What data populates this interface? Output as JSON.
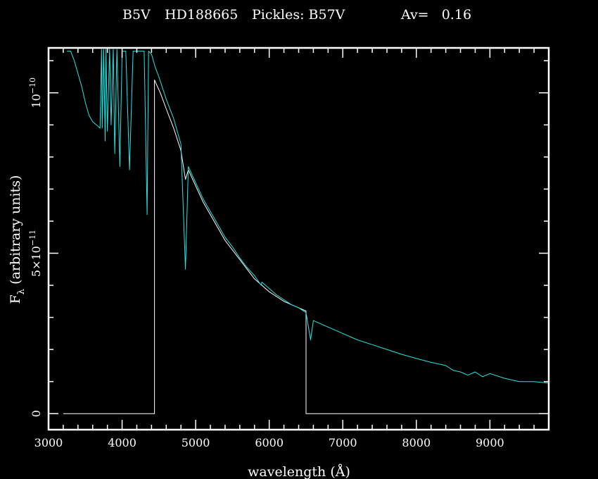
{
  "chart_data": {
    "type": "line",
    "title_parts": {
      "spectral_type": "B5V",
      "star": "HD188665",
      "pickles": "Pickles: B57V",
      "av": "Av=   0.16"
    },
    "xlabel": "wavelength (Å)",
    "ylabel_main": "F",
    "ylabel_sub": "λ",
    "ylabel_rest": " (arbitrary units)",
    "xlim": [
      3000,
      9800
    ],
    "ylim": [
      -5e-12,
      1.14e-10
    ],
    "x_ticks": [
      {
        "value": 3000,
        "label": "3000"
      },
      {
        "value": 4000,
        "label": "4000"
      },
      {
        "value": 5000,
        "label": "5000"
      },
      {
        "value": 6000,
        "label": "6000"
      },
      {
        "value": 7000,
        "label": "7000"
      },
      {
        "value": 8000,
        "label": "8000"
      },
      {
        "value": 9000,
        "label": "9000"
      }
    ],
    "y_ticks": [
      {
        "value": 0,
        "base": "0",
        "exp": ""
      },
      {
        "value": 5e-11,
        "base": "5×10",
        "exp": "−11"
      },
      {
        "value": 1e-10,
        "base": "10",
        "exp": "−10"
      }
    ],
    "grid": false,
    "series": [
      {
        "color": "#ffffff",
        "x": [
          3200,
          4440,
          4440,
          4480,
          4520,
          4600,
          4700,
          4800,
          4861,
          4900,
          5000,
          5100,
          5200,
          5300,
          5400,
          5500,
          5600,
          5700,
          5800,
          5900,
          6000,
          6100,
          6200,
          6300,
          6400,
          6500,
          6500,
          9800
        ],
        "y": [
          0,
          0,
          1.04e-10,
          1.02e-10,
          1e-10,
          9.5e-11,
          8.9e-11,
          8.2e-11,
          7.3e-11,
          7.6e-11,
          7.1e-11,
          6.6e-11,
          6.2e-11,
          5.8e-11,
          5.4e-11,
          5.1e-11,
          4.8e-11,
          4.5e-11,
          4.2e-11,
          4e-11,
          3.8e-11,
          3.65e-11,
          3.5e-11,
          3.4e-11,
          3.3e-11,
          3.2e-11,
          0,
          0
        ]
      },
      {
        "color": "#22e5e5",
        "x": [
          3250,
          3300,
          3350,
          3400,
          3450,
          3500,
          3550,
          3600,
          3650,
          3700,
          3720,
          3730,
          3750,
          3770,
          3780,
          3800,
          3830,
          3850,
          3880,
          3900,
          3930,
          3970,
          4000,
          4050,
          4101,
          4150,
          4200,
          4250,
          4300,
          4340,
          4360,
          4400,
          4450,
          4500,
          4600,
          4700,
          4800,
          4861,
          4900,
          5000,
          5100,
          5200,
          5300,
          5400,
          5500,
          5600,
          5700,
          5800,
          5890,
          5900,
          6000,
          6100,
          6200,
          6300,
          6400,
          6500,
          6563,
          6600,
          6700,
          6800,
          6900,
          7000,
          7200,
          7400,
          7600,
          7800,
          8000,
          8200,
          8400,
          8500,
          8600,
          8700,
          8800,
          8900,
          9000,
          9200,
          9400,
          9600,
          9800
        ],
        "y": [
          1.13e-10,
          1.13e-10,
          1.1e-10,
          1.06e-10,
          1.02e-10,
          9.7e-11,
          9.3e-11,
          9.1e-11,
          9e-11,
          8.9e-11,
          1.14e-10,
          8.9e-11,
          1.14e-10,
          8.5e-11,
          1.14e-10,
          8.8e-11,
          1.14e-10,
          9e-11,
          1.14e-10,
          8.1e-11,
          1.14e-10,
          7.7e-11,
          1.13e-10,
          1.13e-10,
          7.6e-11,
          1.13e-10,
          1.13e-10,
          1.13e-10,
          1.13e-10,
          6.2e-11,
          1.13e-10,
          1.12e-10,
          1.08e-10,
          1.05e-10,
          9.8e-11,
          9.2e-11,
          8.4e-11,
          4.5e-11,
          7.7e-11,
          7.2e-11,
          6.7e-11,
          6.3e-11,
          5.9e-11,
          5.5e-11,
          5.2e-11,
          4.85e-11,
          4.55e-11,
          4.3e-11,
          4e-11,
          4.1e-11,
          3.9e-11,
          3.7e-11,
          3.55e-11,
          3.4e-11,
          3.3e-11,
          3.15e-11,
          2.3e-11,
          2.9e-11,
          2.8e-11,
          2.7e-11,
          2.6e-11,
          2.5e-11,
          2.3e-11,
          2.15e-11,
          2e-11,
          1.85e-11,
          1.72e-11,
          1.6e-11,
          1.5e-11,
          1.35e-11,
          1.3e-11,
          1.2e-11,
          1.3e-11,
          1.15e-11,
          1.25e-11,
          1.1e-11,
          1e-11,
          1e-11,
          9.5e-12
        ]
      }
    ]
  }
}
